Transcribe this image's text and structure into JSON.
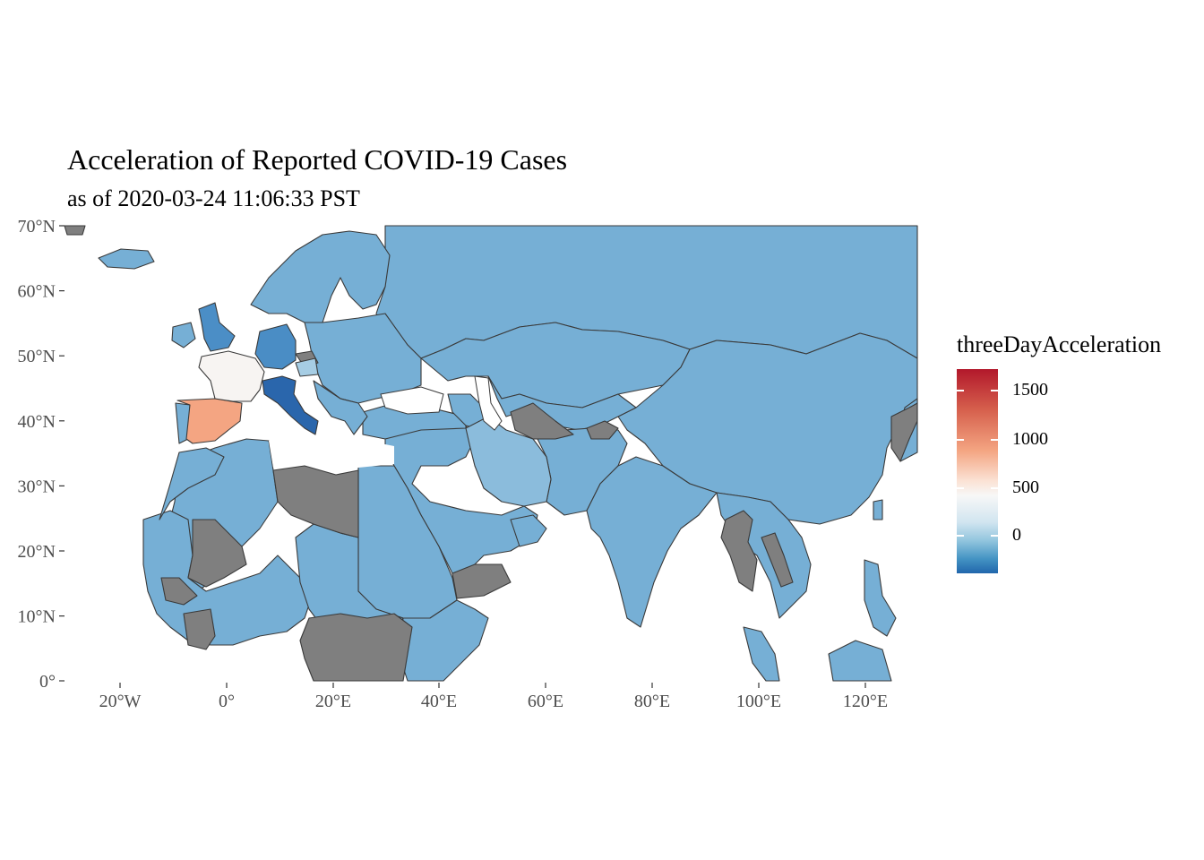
{
  "title": "Acceleration of Reported COVID-19 Cases",
  "subtitle": "as of 2020-03-24 11:06:33 PST",
  "y_ticks": [
    "70°N",
    "60°N",
    "50°N",
    "40°N",
    "30°N",
    "20°N",
    "10°N",
    "0°"
  ],
  "x_ticks": [
    "20°W",
    "0°",
    "20°E",
    "40°E",
    "60°E",
    "80°E",
    "100°E",
    "120°E"
  ],
  "legend": {
    "title": "threeDayAcceleration",
    "labels": [
      "1500",
      "1000",
      "500",
      "0"
    ],
    "colors": [
      "#b2182b",
      "#f4a582",
      "#f7f7f7",
      "#92c5de",
      "#2166ac"
    ]
  },
  "colors": {
    "no_data": "#7f7f7f",
    "default_blue": "#76afd5",
    "spain": "#f4a582",
    "france": "#f7f4f2",
    "italy": "#2a66ac",
    "germany": "#4a8dc5",
    "uk": "#4b8ec6",
    "iran": "#8bbcdc"
  },
  "map": {
    "projection": "equirectangular",
    "lon_range": [
      -30,
      130
    ],
    "lat_range": [
      0,
      70
    ],
    "highlighted_countries": [
      "Spain",
      "France",
      "Italy",
      "Germany",
      "United Kingdom",
      "Iran"
    ]
  }
}
